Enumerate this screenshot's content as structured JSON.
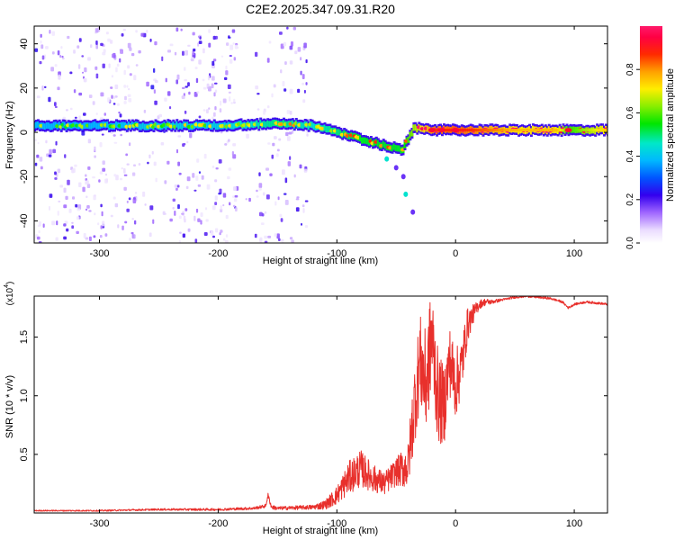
{
  "figure_title": "C2E2.2025.347.09.31.R20",
  "colors": {
    "snr_line": "#e8302c",
    "spectrum_track": "#22ccff",
    "spectrum_core": "#ffd000",
    "spectrum_peak": "#ff1a1a",
    "speckle": "#7a2cff",
    "background": "#ffffff"
  },
  "chart_data": [
    {
      "id": "spectrogram",
      "type": "heatmap",
      "title": "",
      "xlabel": "Height of straight line (km)",
      "ylabel": "Frequency (Hz)",
      "xlim": [
        -355,
        128
      ],
      "ylim": [
        -50,
        48
      ],
      "xticks": [
        -300,
        -200,
        -100,
        0,
        100
      ],
      "xtick_labels": [
        "-300",
        "-200",
        "-100",
        "0",
        "100"
      ],
      "yticks": [
        -40,
        -20,
        0,
        20,
        40
      ],
      "ytick_labels": [
        "-40",
        "-20",
        "0",
        "20",
        "40"
      ],
      "colorbar": {
        "label": "Normalized spectral amplitude",
        "range": [
          0,
          1
        ],
        "ticks": [
          0.0,
          0.2,
          0.4,
          0.6,
          0.8
        ],
        "tick_labels": [
          "0.0",
          "0.2",
          "0.4",
          "0.6",
          "0.8"
        ],
        "colormap": "rainbow (white-violet-blue-cyan-green-yellow-red-magenta)"
      },
      "ridge": {
        "description": "dominant frequency ridge vs height",
        "x": [
          -355,
          -300,
          -250,
          -200,
          -150,
          -120,
          -100,
          -80,
          -60,
          -45,
          -35,
          -20,
          0,
          50,
          85,
          95,
          128
        ],
        "y": [
          3,
          3,
          3,
          3,
          4,
          3,
          0,
          -3,
          -6,
          -8,
          2,
          1,
          1,
          1,
          1,
          1,
          1
        ],
        "amplitude": [
          0.35,
          0.35,
          0.4,
          0.4,
          0.5,
          0.45,
          0.5,
          0.55,
          0.55,
          0.55,
          0.7,
          0.9,
          0.95,
          0.8,
          0.8,
          0.6,
          0.8
        ]
      },
      "tail": {
        "x": [
          -58,
          -50,
          -44
        ],
        "y": [
          -12,
          -16,
          -20
        ]
      },
      "tail2": {
        "x": [
          -42,
          -36
        ],
        "y": [
          -28,
          -36
        ]
      },
      "speckle_bands": [
        {
          "x_from": -355,
          "x_to": -270,
          "density": 0.7
        },
        {
          "x_from": -270,
          "x_to": -235,
          "density": 0.35
        },
        {
          "x_from": -235,
          "x_to": -185,
          "density": 0.8
        },
        {
          "x_from": -185,
          "x_to": -170,
          "density": 0.05
        },
        {
          "x_from": -170,
          "x_to": -125,
          "density": 0.55
        },
        {
          "x_from": -125,
          "x_to": 128,
          "density": 0.0
        }
      ]
    },
    {
      "id": "snr",
      "type": "line",
      "title": "",
      "xlabel": "Height of straight line (km)",
      "ylabel": "SNR (10 * v/v)",
      "y_multiplier_label": "(x10",
      "y_multiplier_exp": "4",
      "y_multiplier_close": ")",
      "xlim": [
        -355,
        128
      ],
      "ylim": [
        0,
        1.85
      ],
      "xticks": [
        -300,
        -200,
        -100,
        0,
        100
      ],
      "xtick_labels": [
        "-300",
        "-200",
        "-100",
        "0",
        "100"
      ],
      "yticks": [
        0.5,
        1.0,
        1.5
      ],
      "ytick_labels": [
        "0.5",
        "1.0",
        "1.5"
      ],
      "series": [
        {
          "name": "SNR",
          "x": [
            -355,
            -300,
            -250,
            -200,
            -170,
            -160,
            -158,
            -155,
            -150,
            -120,
            -110,
            -100,
            -90,
            -80,
            -70,
            -60,
            -50,
            -40,
            -35,
            -30,
            -25,
            -20,
            -15,
            -10,
            -5,
            0,
            5,
            10,
            15,
            20,
            25,
            30,
            40,
            50,
            60,
            70,
            80,
            90,
            95,
            100,
            110,
            120,
            128
          ],
          "values": [
            0.02,
            0.02,
            0.03,
            0.03,
            0.04,
            0.06,
            0.15,
            0.05,
            0.04,
            0.05,
            0.07,
            0.15,
            0.3,
            0.38,
            0.3,
            0.25,
            0.35,
            0.4,
            0.9,
            1.3,
            1.1,
            1.5,
            1.0,
            0.9,
            1.3,
            1.1,
            1.25,
            1.6,
            1.7,
            1.78,
            1.8,
            1.8,
            1.82,
            1.84,
            1.85,
            1.84,
            1.83,
            1.8,
            1.75,
            1.78,
            1.8,
            1.79,
            1.78
          ],
          "noise": [
            0.005,
            0.006,
            0.008,
            0.01,
            0.012,
            0.015,
            0.02,
            0.02,
            0.015,
            0.02,
            0.04,
            0.08,
            0.14,
            0.16,
            0.12,
            0.1,
            0.12,
            0.2,
            0.35,
            0.4,
            0.45,
            0.45,
            0.4,
            0.35,
            0.3,
            0.3,
            0.25,
            0.15,
            0.08,
            0.04,
            0.03,
            0.02,
            0.01,
            0.01,
            0.01,
            0.01,
            0.01,
            0.01,
            0.01,
            0.01,
            0.01,
            0.01,
            0.01
          ]
        }
      ]
    }
  ]
}
